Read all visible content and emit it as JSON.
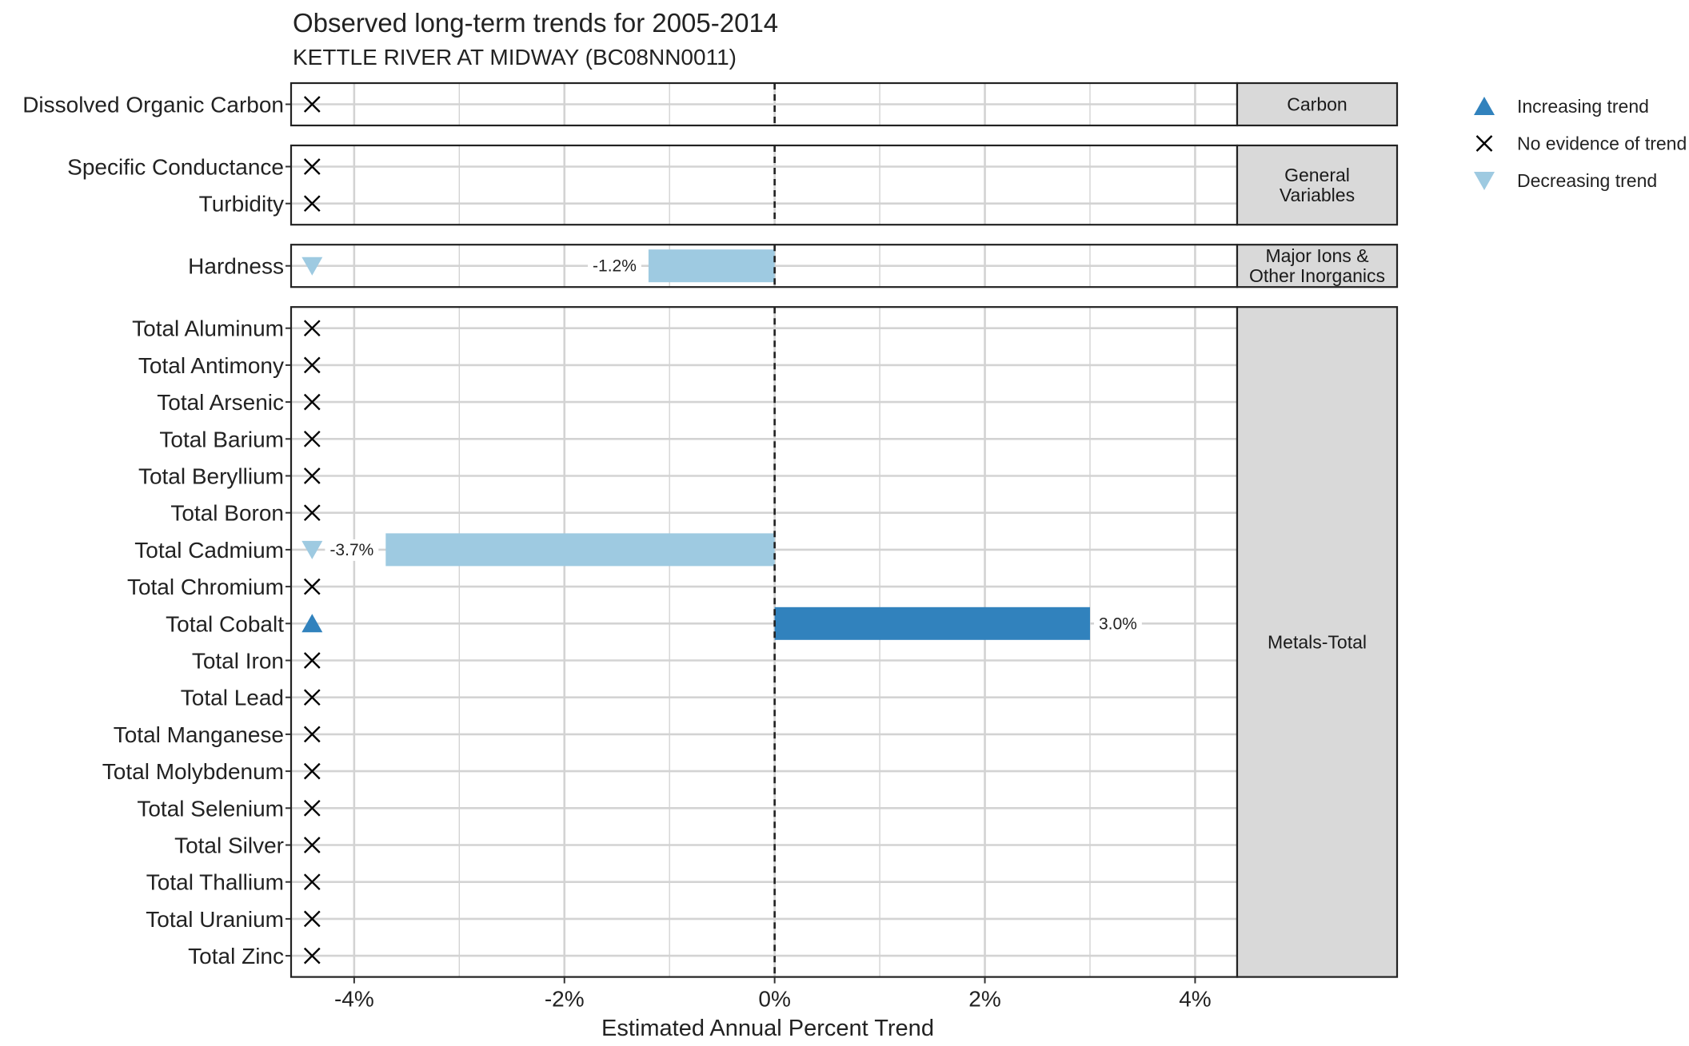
{
  "chart_data": {
    "type": "bar",
    "title": "Observed long-term trends for 2005-2014",
    "subtitle": "KETTLE RIVER AT MIDWAY (BC08NN0011)",
    "xlabel": "Estimated Annual Percent Trend",
    "xlim": [
      -4.6,
      4.4
    ],
    "xticks": [
      -4,
      -2,
      0,
      2,
      4
    ],
    "xtick_labels": [
      "-4%",
      "-2%",
      "0%",
      "2%",
      "4%"
    ],
    "reference_line": 0,
    "grid": true,
    "legend_position": "right",
    "colors": {
      "increasing": "#3182bd",
      "decreasing": "#9ecae1",
      "no_trend": "#000000"
    },
    "legend": [
      {
        "key": "increasing",
        "label": "Increasing trend"
      },
      {
        "key": "none",
        "label": "No evidence of trend"
      },
      {
        "key": "decreasing",
        "label": "Decreasing trend"
      }
    ],
    "facets": [
      {
        "label_lines": [
          "Carbon"
        ],
        "variables": [
          {
            "name": "Dissolved Organic Carbon",
            "trend": "none",
            "value": null,
            "label": ""
          }
        ]
      },
      {
        "label_lines": [
          "General",
          "Variables"
        ],
        "variables": [
          {
            "name": "Specific Conductance",
            "trend": "none",
            "value": null,
            "label": ""
          },
          {
            "name": "Turbidity",
            "trend": "none",
            "value": null,
            "label": ""
          }
        ]
      },
      {
        "label_lines": [
          "Major Ions &",
          "Other Inorganics"
        ],
        "variables": [
          {
            "name": "Hardness",
            "trend": "decreasing",
            "value": -1.2,
            "label": "-1.2%"
          }
        ]
      },
      {
        "label_lines": [
          "Metals-Total"
        ],
        "variables": [
          {
            "name": "Total Aluminum",
            "trend": "none",
            "value": null,
            "label": ""
          },
          {
            "name": "Total Antimony",
            "trend": "none",
            "value": null,
            "label": ""
          },
          {
            "name": "Total Arsenic",
            "trend": "none",
            "value": null,
            "label": ""
          },
          {
            "name": "Total Barium",
            "trend": "none",
            "value": null,
            "label": ""
          },
          {
            "name": "Total Beryllium",
            "trend": "none",
            "value": null,
            "label": ""
          },
          {
            "name": "Total Boron",
            "trend": "none",
            "value": null,
            "label": ""
          },
          {
            "name": "Total Cadmium",
            "trend": "decreasing",
            "value": -3.7,
            "label": "-3.7%"
          },
          {
            "name": "Total Chromium",
            "trend": "none",
            "value": null,
            "label": ""
          },
          {
            "name": "Total Cobalt",
            "trend": "increasing",
            "value": 3.0,
            "label": "3.0%"
          },
          {
            "name": "Total Iron",
            "trend": "none",
            "value": null,
            "label": ""
          },
          {
            "name": "Total Lead",
            "trend": "none",
            "value": null,
            "label": ""
          },
          {
            "name": "Total Manganese",
            "trend": "none",
            "value": null,
            "label": ""
          },
          {
            "name": "Total Molybdenum",
            "trend": "none",
            "value": null,
            "label": ""
          },
          {
            "name": "Total Selenium",
            "trend": "none",
            "value": null,
            "label": ""
          },
          {
            "name": "Total Silver",
            "trend": "none",
            "value": null,
            "label": ""
          },
          {
            "name": "Total Thallium",
            "trend": "none",
            "value": null,
            "label": ""
          },
          {
            "name": "Total Uranium",
            "trend": "none",
            "value": null,
            "label": ""
          },
          {
            "name": "Total Zinc",
            "trend": "none",
            "value": null,
            "label": ""
          }
        ]
      }
    ]
  }
}
